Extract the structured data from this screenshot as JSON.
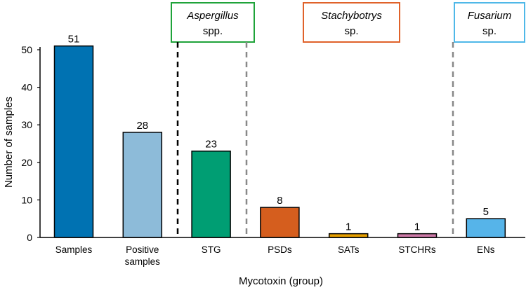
{
  "chart_data": {
    "type": "bar",
    "title": "",
    "xlabel": "Mycotoxin (group)",
    "ylabel": "Number of samples",
    "ylim": [
      0,
      51
    ],
    "yticks": [
      0,
      10,
      20,
      30,
      40,
      50
    ],
    "grid": false,
    "categories": [
      {
        "line1": "Samples",
        "line2": ""
      },
      {
        "line1": "Positive",
        "line2": "samples"
      },
      {
        "line1": "STG",
        "line2": ""
      },
      {
        "line1": "PSDs",
        "line2": ""
      },
      {
        "line1": "SATs",
        "line2": ""
      },
      {
        "line1": "STCHRs",
        "line2": ""
      },
      {
        "line1": "ENs",
        "line2": ""
      }
    ],
    "values": [
      51,
      28,
      23,
      8,
      1,
      1,
      5
    ],
    "colors": [
      "#0072b2",
      "#8dbbd9",
      "#009e73",
      "#d55e1e",
      "#e69f00",
      "#cc79a7",
      "#56b4e9"
    ],
    "groups": [
      {
        "genus": "Aspergillus",
        "suffix": "spp.",
        "color": "#1fa33a",
        "from": 2,
        "to": 2
      },
      {
        "genus": "Stachybotrys",
        "suffix": "sp.",
        "color": "#e0622a",
        "from": 3,
        "to": 5
      },
      {
        "genus": "Fusarium",
        "suffix": "sp.",
        "color": "#4fb8e8",
        "from": 6,
        "to": 6
      }
    ]
  }
}
